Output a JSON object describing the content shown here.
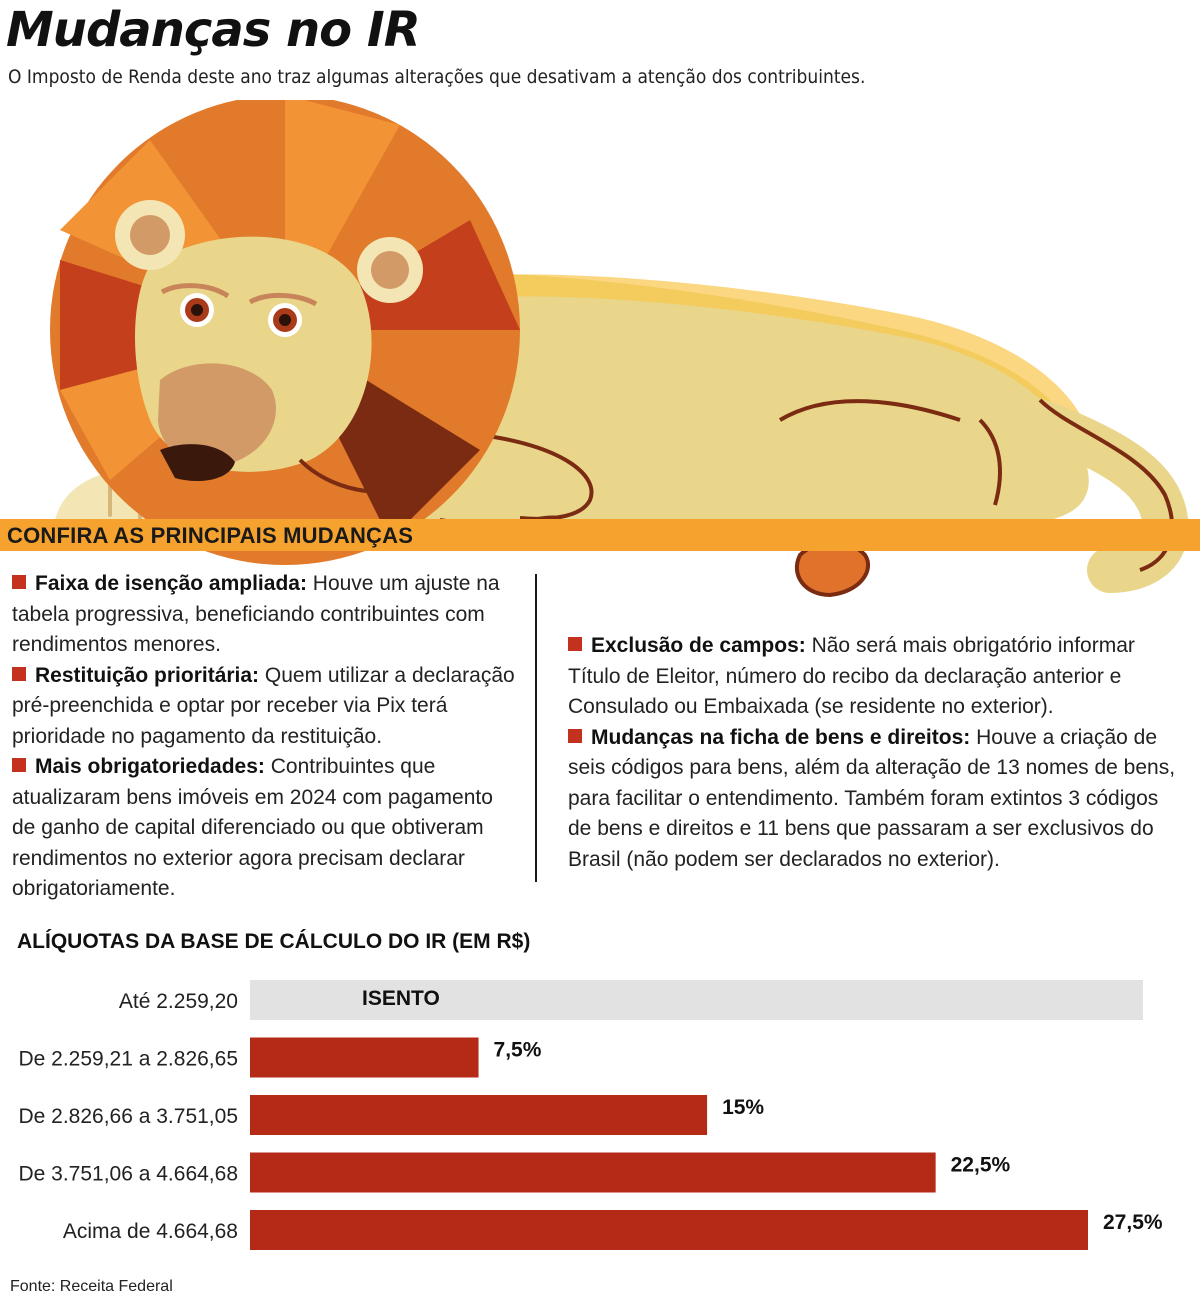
{
  "title": "Mudanças no IR",
  "subtitle": "O Imposto de Renda deste ano traz algumas alterações que desativam a atenção dos contribuintes.",
  "section_label": "CONFIRA AS PRINCIPAIS MUDANÇAS",
  "changes_left": [
    {
      "lead": "Faixa de isenção ampliada:",
      "text": " Houve um ajuste na tabela progressiva, beneficiando contribuintes com rendimentos menores."
    },
    {
      "lead": "Restituição prioritária:",
      "text": " Quem utilizar a declaração pré-preenchida e optar por receber via Pix terá prioridade no pagamento da restituição."
    },
    {
      "lead": "Mais obrigatoriedades:",
      "text": " Contribuintes que atualizaram bens imóveis em 2024 com pagamento de ganho de capital diferenciado ou que obtiveram rendimentos no exterior agora precisam declarar obrigatoriamente."
    }
  ],
  "changes_right": [
    {
      "lead": "Exclusão de campos:",
      "text": " Não será mais obrigatório informar Título de Eleitor, número do recibo da declaração anterior e Consulado ou Embaixada (se residente no exterior)."
    },
    {
      "lead": "Mudanças na ficha de bens e direitos:",
      "text": " Houve a criação de seis códigos para bens, além da alteração de 13 nomes de bens, para facilitar o entendimento. Também foram extintos 3 códigos de bens e direitos e 11 bens que passaram a ser exclusivos do Brasil (não podem ser declarados no exterior)."
    }
  ],
  "chart_data": {
    "type": "bar",
    "orientation": "horizontal",
    "title": "ALÍQUOTAS DA BASE DE CÁLCULO DO IR (EM R$)",
    "categories": [
      "Até 2.259,20",
      "De 2.259,21 a 2.826,65",
      "De 2.826,66 a 3.751,05",
      "De 3.751,06 a 4.664,68",
      "Acima de 4.664,68"
    ],
    "values": [
      null,
      7.5,
      15,
      22.5,
      27.5
    ],
    "value_labels": [
      "ISENTO",
      "7,5%",
      "15%",
      "22,5%",
      "27,5%"
    ],
    "xlim": [
      0,
      27.5
    ],
    "colors": {
      "bar": "#b52a17",
      "exempt": "#e2e2e2",
      "label": "#111111"
    }
  },
  "source": "Fonte: Receita Federal",
  "colors": {
    "accent": "#f5a22e",
    "bullet": "#c4311e"
  }
}
